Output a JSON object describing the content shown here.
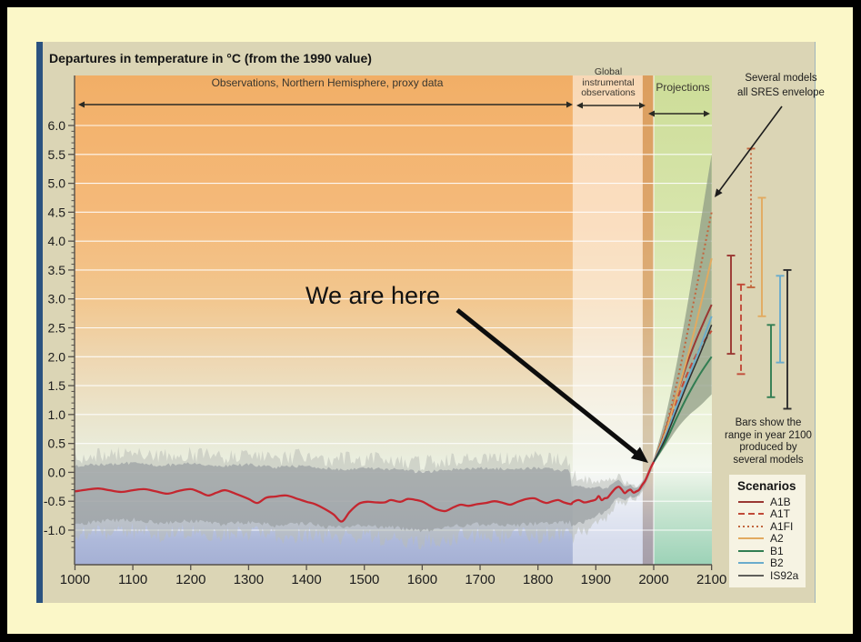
{
  "slide": {
    "background_color": "#fbf7c8",
    "border_color": "#000000",
    "panel_color": "#dbd5b5",
    "accent_bar_color": "#2a5280"
  },
  "chart": {
    "title": "Departures in temperature in °C (from the 1990 value)",
    "annotations": {
      "proxy": "Observations, Northern Hemisphere, proxy data",
      "instrumental_lines": [
        "Global",
        "instrumental",
        "observations"
      ],
      "projections": "Projections",
      "envelope_note_lines": [
        "Several models",
        "all SRES envelope"
      ],
      "bars_note_lines": [
        "Bars show the",
        "range in year 2100",
        "produced by",
        "several models"
      ],
      "we_are_here": "We are here"
    },
    "legend": {
      "title": "Scenarios"
    }
  },
  "chart_data": {
    "type": "line",
    "title": "Departures in temperature in °C (from the 1990 value)",
    "x_range": [
      1000,
      2100
    ],
    "y_range": [
      -1.6,
      6.85
    ],
    "grid": "horizontal white lines every 0.5",
    "x_ticks": [
      1000,
      1100,
      1200,
      1300,
      1400,
      1500,
      1600,
      1700,
      1800,
      1900,
      2000,
      2100
    ],
    "y_tick_values": [
      6.0,
      5.5,
      5.0,
      4.5,
      4.0,
      3.5,
      3.0,
      2.5,
      2.0,
      1.5,
      1.0,
      0.5,
      0.0,
      -0.5,
      -1.0
    ],
    "y_tick_labels": [
      "6.0",
      "5.5",
      "5.0",
      "4.5",
      "4.0",
      "3.5",
      "3.0",
      "2.5",
      "2.0",
      "1.5",
      "1.0",
      "0.5",
      "0.0",
      "-0.5",
      "-1.0"
    ],
    "regions": [
      {
        "name": "Observations, Northern Hemisphere, proxy data",
        "x_span": [
          1000,
          1860
        ]
      },
      {
        "name": "Global instrumental observations",
        "x_span": [
          1860,
          1981
        ]
      },
      {
        "name": "transition strip",
        "x_span": [
          1981,
          2000
        ]
      },
      {
        "name": "Projections",
        "x_span": [
          2000,
          2100
        ]
      }
    ],
    "observed": {
      "color": "#c4262f",
      "points_proxy": [
        [
          1000,
          -0.33
        ],
        [
          1020,
          -0.3
        ],
        [
          1040,
          -0.28
        ],
        [
          1060,
          -0.31
        ],
        [
          1080,
          -0.34
        ],
        [
          1100,
          -0.31
        ],
        [
          1120,
          -0.29
        ],
        [
          1140,
          -0.33
        ],
        [
          1160,
          -0.37
        ],
        [
          1180,
          -0.32
        ],
        [
          1200,
          -0.29
        ],
        [
          1215,
          -0.34
        ],
        [
          1230,
          -0.4
        ],
        [
          1245,
          -0.35
        ],
        [
          1260,
          -0.31
        ],
        [
          1280,
          -0.38
        ],
        [
          1300,
          -0.46
        ],
        [
          1315,
          -0.53
        ],
        [
          1330,
          -0.44
        ],
        [
          1345,
          -0.42
        ],
        [
          1365,
          -0.4
        ],
        [
          1385,
          -0.46
        ],
        [
          1400,
          -0.51
        ],
        [
          1415,
          -0.55
        ],
        [
          1431,
          -0.63
        ],
        [
          1447,
          -0.73
        ],
        [
          1461,
          -0.85
        ],
        [
          1475,
          -0.68
        ],
        [
          1491,
          -0.54
        ],
        [
          1505,
          -0.51
        ],
        [
          1520,
          -0.52
        ],
        [
          1535,
          -0.52
        ],
        [
          1546,
          -0.48
        ],
        [
          1562,
          -0.51
        ],
        [
          1575,
          -0.46
        ],
        [
          1590,
          -0.48
        ],
        [
          1601,
          -0.51
        ],
        [
          1612,
          -0.57
        ],
        [
          1625,
          -0.64
        ],
        [
          1640,
          -0.67
        ],
        [
          1655,
          -0.6
        ],
        [
          1667,
          -0.56
        ],
        [
          1680,
          -0.58
        ],
        [
          1695,
          -0.55
        ],
        [
          1710,
          -0.53
        ],
        [
          1725,
          -0.5
        ],
        [
          1740,
          -0.53
        ],
        [
          1752,
          -0.56
        ],
        [
          1765,
          -0.51
        ],
        [
          1780,
          -0.46
        ],
        [
          1794,
          -0.45
        ],
        [
          1805,
          -0.5
        ],
        [
          1815,
          -0.53
        ],
        [
          1825,
          -0.5
        ],
        [
          1835,
          -0.48
        ],
        [
          1845,
          -0.52
        ],
        [
          1857,
          -0.55
        ]
      ],
      "points_instrumental": [
        [
          1860,
          -0.52
        ],
        [
          1870,
          -0.48
        ],
        [
          1880,
          -0.52
        ],
        [
          1890,
          -0.5
        ],
        [
          1900,
          -0.47
        ],
        [
          1905,
          -0.41
        ],
        [
          1910,
          -0.48
        ],
        [
          1915,
          -0.45
        ],
        [
          1920,
          -0.44
        ],
        [
          1925,
          -0.38
        ],
        [
          1930,
          -0.32
        ],
        [
          1935,
          -0.27
        ],
        [
          1940,
          -0.25
        ],
        [
          1945,
          -0.3
        ],
        [
          1950,
          -0.36
        ],
        [
          1955,
          -0.32
        ],
        [
          1960,
          -0.3
        ],
        [
          1965,
          -0.35
        ],
        [
          1970,
          -0.33
        ],
        [
          1975,
          -0.3
        ],
        [
          1980,
          -0.22
        ],
        [
          1985,
          -0.15
        ],
        [
          1990,
          -0.04
        ],
        [
          1995,
          0.08
        ],
        [
          2000,
          0.18
        ]
      ]
    },
    "proxy_uncertainty_band": {
      "color": "#9aa0a2",
      "points": [
        [
          1000,
          0.14,
          -0.93
        ],
        [
          1050,
          0.17,
          -0.88
        ],
        [
          1100,
          0.19,
          -0.86
        ],
        [
          1150,
          0.15,
          -0.92
        ],
        [
          1200,
          0.18,
          -0.88
        ],
        [
          1250,
          0.13,
          -0.94
        ],
        [
          1300,
          0.17,
          -0.9
        ],
        [
          1350,
          0.11,
          -0.97
        ],
        [
          1400,
          0.15,
          -0.92
        ],
        [
          1450,
          0.08,
          -1.0
        ],
        [
          1500,
          0.11,
          -0.95
        ],
        [
          1550,
          0.08,
          -1.0
        ],
        [
          1600,
          0.03,
          -1.05
        ],
        [
          1650,
          0.08,
          -0.98
        ],
        [
          1700,
          0.11,
          -0.93
        ],
        [
          1750,
          0.08,
          -0.96
        ],
        [
          1800,
          0.11,
          -0.93
        ],
        [
          1855,
          0.05,
          -0.9
        ]
      ]
    },
    "projection_envelope": {
      "label": "Several models all SRES envelope",
      "color": "#8d9a83",
      "top": [
        [
          2000,
          0.22
        ],
        [
          2020,
          0.95
        ],
        [
          2040,
          1.9
        ],
        [
          2060,
          3.0
        ],
        [
          2080,
          4.25
        ],
        [
          2100,
          5.5
        ]
      ],
      "bottom": [
        [
          2000,
          0.15
        ],
        [
          2020,
          0.45
        ],
        [
          2040,
          0.75
        ],
        [
          2060,
          0.98
        ],
        [
          2080,
          1.15
        ],
        [
          2100,
          1.35
        ]
      ]
    },
    "scenarios": [
      {
        "label": "A1B",
        "style": "solid",
        "color": "#9a3732",
        "width": 2,
        "points": [
          [
            2000,
            0.18
          ],
          [
            2020,
            0.72
          ],
          [
            2040,
            1.35
          ],
          [
            2060,
            1.95
          ],
          [
            2080,
            2.45
          ],
          [
            2100,
            2.9
          ]
        ],
        "bar_range_2100": [
          2.05,
          3.75
        ]
      },
      {
        "label": "A1T",
        "style": "dashed",
        "color": "#c14a38",
        "width": 2,
        "points": [
          [
            2000,
            0.18
          ],
          [
            2020,
            0.68
          ],
          [
            2040,
            1.25
          ],
          [
            2060,
            1.75
          ],
          [
            2080,
            2.15
          ],
          [
            2100,
            2.45
          ]
        ],
        "bar_range_2100": [
          1.7,
          3.25
        ]
      },
      {
        "label": "A1FI",
        "style": "dotted",
        "color": "#c2663e",
        "width": 2,
        "points": [
          [
            2000,
            0.18
          ],
          [
            2020,
            0.75
          ],
          [
            2040,
            1.55
          ],
          [
            2060,
            2.5
          ],
          [
            2080,
            3.5
          ],
          [
            2100,
            4.5
          ]
        ],
        "bar_range_2100": [
          3.2,
          5.6
        ]
      },
      {
        "label": "A2",
        "style": "solid",
        "color": "#e2aa60",
        "width": 2,
        "points": [
          [
            2000,
            0.18
          ],
          [
            2020,
            0.68
          ],
          [
            2040,
            1.35
          ],
          [
            2060,
            2.05
          ],
          [
            2080,
            2.85
          ],
          [
            2100,
            3.7
          ]
        ],
        "bar_range_2100": [
          2.7,
          4.75
        ]
      },
      {
        "label": "B1",
        "style": "solid",
        "color": "#317d52",
        "width": 2,
        "points": [
          [
            2000,
            0.18
          ],
          [
            2020,
            0.52
          ],
          [
            2040,
            0.95
          ],
          [
            2060,
            1.35
          ],
          [
            2080,
            1.7
          ],
          [
            2100,
            2.0
          ]
        ],
        "bar_range_2100": [
          1.3,
          2.55
        ]
      },
      {
        "label": "B2",
        "style": "solid",
        "color": "#6aaccc",
        "width": 2,
        "points": [
          [
            2000,
            0.18
          ],
          [
            2020,
            0.62
          ],
          [
            2040,
            1.15
          ],
          [
            2060,
            1.65
          ],
          [
            2080,
            2.15
          ],
          [
            2100,
            2.7
          ]
        ],
        "bar_range_2100": [
          1.9,
          3.4
        ]
      },
      {
        "label": "IS92a",
        "style": "solid",
        "color": "#2e2e2e",
        "width": 1.5,
        "points": [
          [
            2000,
            0.18
          ],
          [
            2020,
            0.58
          ],
          [
            2040,
            1.08
          ],
          [
            2060,
            1.58
          ],
          [
            2080,
            2.05
          ],
          [
            2100,
            2.55
          ]
        ],
        "bar_range_2100": [
          1.1,
          3.5
        ]
      }
    ],
    "bars_note": "Bars show the range in year 2100 produced by several models",
    "legend_position": "bottom-right"
  }
}
